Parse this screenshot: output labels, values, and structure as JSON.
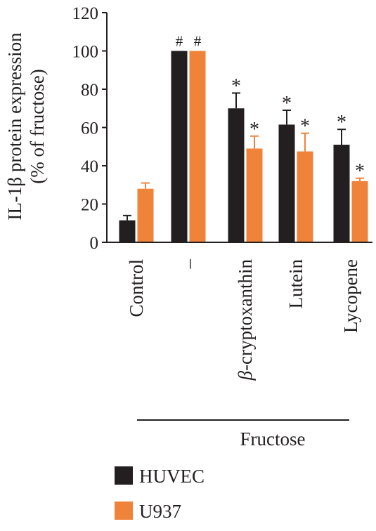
{
  "chart_data": {
    "type": "bar",
    "title": "",
    "ylabel_line1": "IL-1β protein expression",
    "ylabel_line2": "(% of fructose)",
    "xlabel": "",
    "ylim": [
      0,
      120
    ],
    "yticks": [
      "0",
      "20",
      "40",
      "60",
      "80",
      "100",
      "120"
    ],
    "categories": [
      "Control",
      "–",
      "β-cryptoxanthin",
      "Lutein",
      "Lycopene"
    ],
    "group_label": "Fructose",
    "grid": false,
    "legend_position": "bottom-left",
    "series": [
      {
        "name": "HUVEC",
        "color": "#231f20",
        "values": [
          11.5,
          100,
          70,
          61.5,
          51
        ],
        "errors": [
          2.5,
          0,
          8,
          7.5,
          8
        ],
        "annotations": [
          "",
          "#",
          "*",
          "*",
          "*"
        ]
      },
      {
        "name": "U937",
        "color": "#f0833a",
        "values": [
          28,
          100,
          49,
          47.5,
          32
        ],
        "errors": [
          3,
          0,
          6.5,
          9.5,
          1.5
        ],
        "annotations": [
          "",
          "#",
          "*",
          "*",
          "*"
        ]
      }
    ]
  }
}
